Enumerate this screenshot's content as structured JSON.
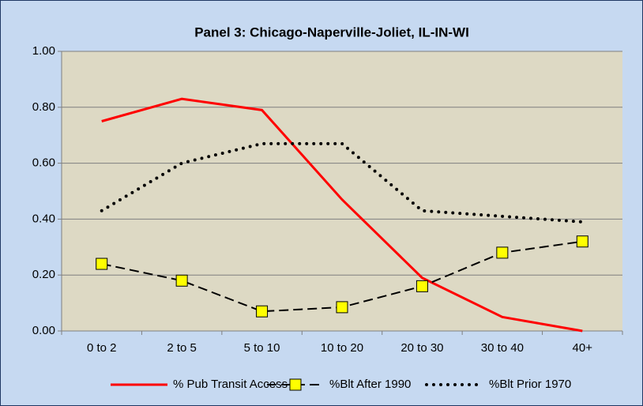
{
  "chart_data": {
    "type": "line",
    "title": "Panel 3: Chicago-Naperville-Joliet, IL-IN-WI",
    "categories": [
      "0 to 2",
      "2 to 5",
      "5 to 10",
      "10 to 20",
      "20 to 30",
      "30 to 40",
      "40+"
    ],
    "series": [
      {
        "name": "% Pub Transit Access",
        "color": "#ff0000",
        "style": "solid",
        "values": [
          0.75,
          0.83,
          0.79,
          0.47,
          0.19,
          0.05,
          0.0
        ]
      },
      {
        "name": "%Blt After 1990",
        "color": "#000000",
        "style": "dashed",
        "marker": "square",
        "marker_color": "#ffff00",
        "values": [
          0.24,
          0.18,
          0.07,
          0.085,
          0.16,
          0.28,
          0.32
        ]
      },
      {
        "name": "%Blt Prior 1970",
        "color": "#000000",
        "style": "dotted",
        "values": [
          0.43,
          0.6,
          0.67,
          0.67,
          0.43,
          0.41,
          0.39
        ]
      }
    ],
    "ylim": [
      0,
      1
    ],
    "yticks": [
      {
        "value": 0,
        "label": "0.00"
      },
      {
        "value": 0.2,
        "label": "0.20"
      },
      {
        "value": 0.4,
        "label": "0.40"
      },
      {
        "value": 0.6,
        "label": "0.60"
      },
      {
        "value": 0.8,
        "label": "0.80"
      },
      {
        "value": 1,
        "label": "1.00"
      }
    ],
    "grid": true,
    "legend": "bottom"
  }
}
